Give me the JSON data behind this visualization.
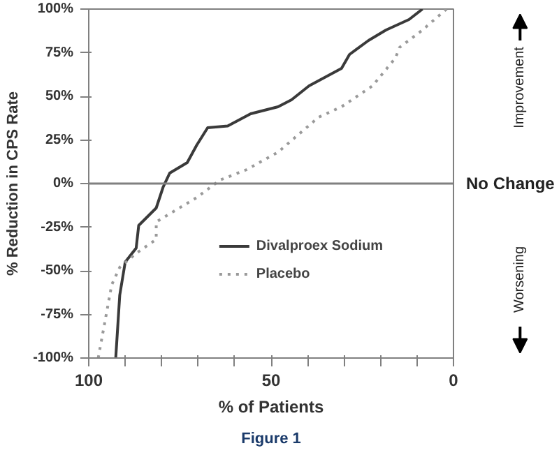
{
  "chart_data": {
    "type": "line",
    "xlabel": "% of Patients",
    "ylabel": "% Reduction in CPS Rate",
    "xlim": [
      100,
      0
    ],
    "ylim": [
      -100,
      100
    ],
    "xticks": [
      100,
      {
        "value": 90,
        "label": null
      },
      {
        "value": 80,
        "label": null
      },
      {
        "value": 70,
        "label": null
      },
      {
        "value": 60,
        "label": null
      },
      50,
      {
        "value": 40,
        "label": null
      },
      {
        "value": 30,
        "label": null
      },
      {
        "value": 20,
        "label": null
      },
      {
        "value": 10,
        "label": null
      },
      0
    ],
    "yticks": [
      {
        "value": 100,
        "label": "100%"
      },
      {
        "value": 75,
        "label": "75%"
      },
      {
        "value": 50,
        "label": "50%"
      },
      {
        "value": 25,
        "label": "25%"
      },
      {
        "value": 0,
        "label": "0%"
      },
      {
        "value": -25,
        "label": "-25%"
      },
      {
        "value": -50,
        "label": "-50%"
      },
      {
        "value": -75,
        "label": "-75%"
      },
      {
        "value": -100,
        "label": "-100%"
      }
    ],
    "grid": false,
    "legend": "bottom right",
    "marker": "none",
    "series": [
      {
        "name": "Divalproex Sodium",
        "color": "#3a3a3a",
        "line_style": "solid",
        "x": [
          92.6,
          91.5,
          90,
          87,
          86.3,
          81.5,
          79.6,
          77.8,
          73,
          70.4,
          67.4,
          61.9,
          55.6,
          48.1,
          44.4,
          39.6,
          30.7,
          28.5,
          23.3,
          18.5,
          12.2,
          8.5
        ],
        "values": [
          -100,
          -64,
          -45,
          -37,
          -24,
          -14,
          -2,
          6,
          12,
          22,
          32,
          33,
          40,
          44,
          48,
          56,
          66,
          74,
          82,
          88,
          94,
          100
        ]
      },
      {
        "name": "Placebo",
        "color": "#9a9a9a",
        "line_style": "dotted",
        "x": [
          97.4,
          93.7,
          91.5,
          87,
          81.5,
          81.5,
          70.4,
          64,
          56.7,
          48.1,
          37,
          30.7,
          22.2,
          15.9,
          14.8,
          8.5,
          1.9
        ],
        "values": [
          -100,
          -58,
          -48,
          -40,
          -32,
          -22,
          -8,
          2,
          8,
          18,
          38,
          44,
          56,
          72,
          78,
          88,
          100
        ]
      }
    ],
    "ref_lines": [
      {
        "axis": "y",
        "value": 0,
        "label": "No Change",
        "color": "#808080"
      }
    ],
    "annotations": [
      "Improvement",
      "Worsening",
      "Figure 1"
    ]
  }
}
